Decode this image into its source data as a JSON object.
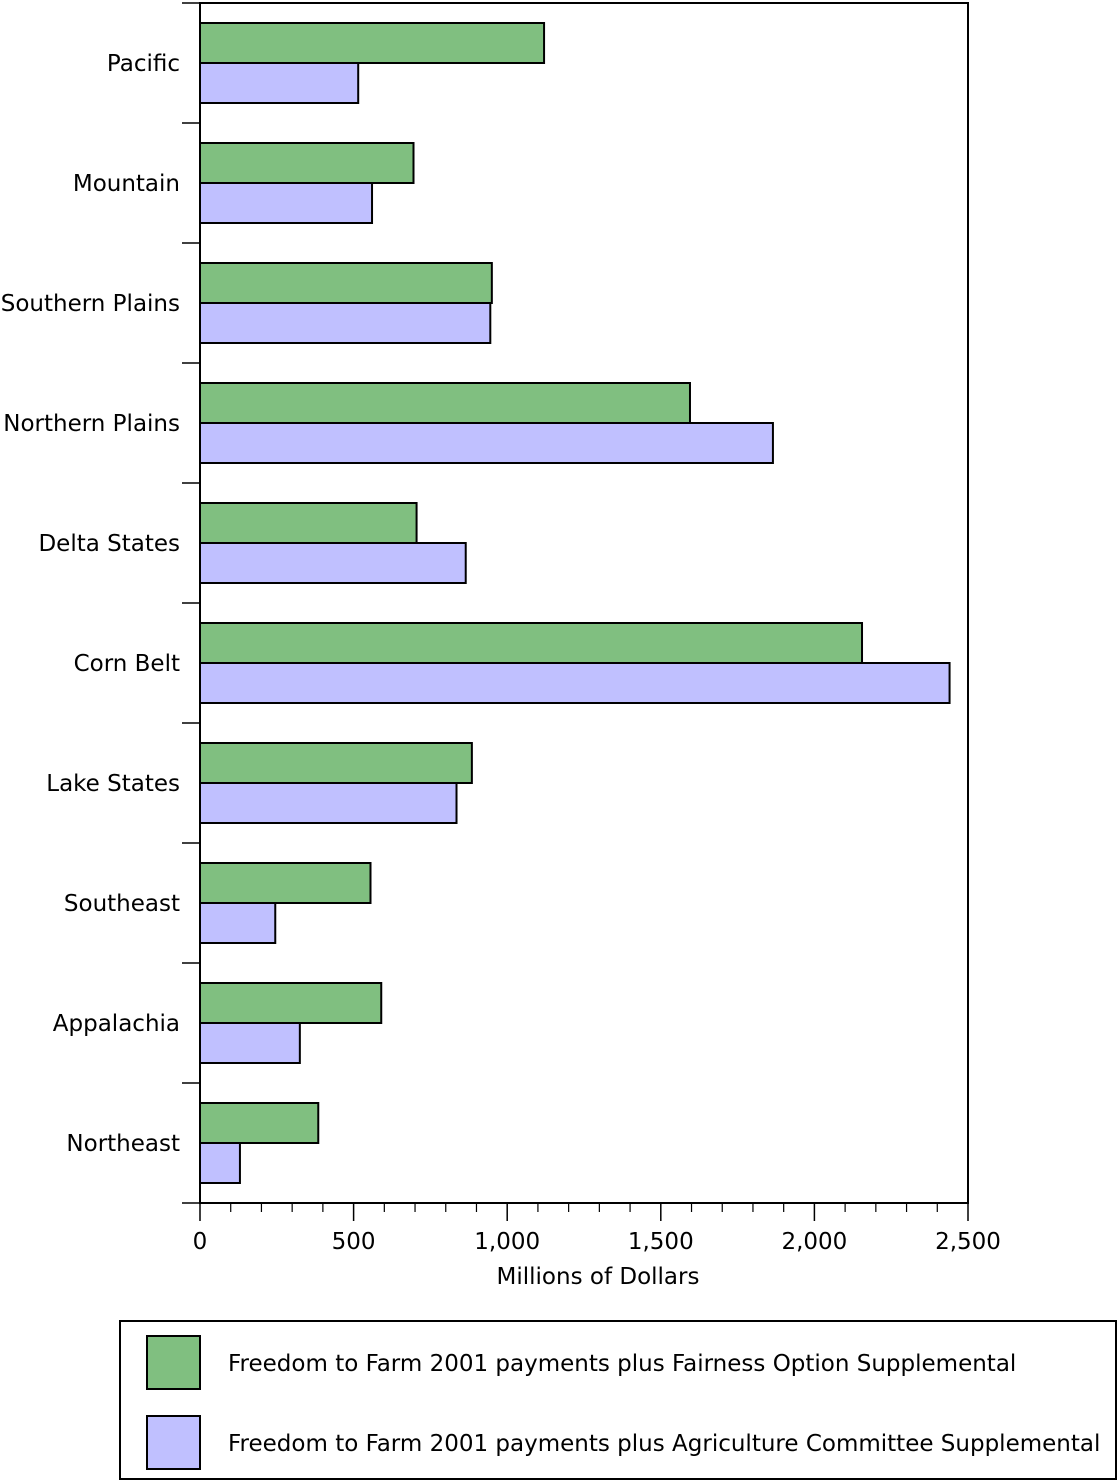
{
  "chart_data": {
    "type": "bar",
    "orientation": "horizontal",
    "title": "",
    "xlabel": "Millions of Dollars",
    "ylabel": "",
    "xlim": [
      0,
      2500
    ],
    "x_ticks": [
      0,
      500,
      1000,
      1500,
      2000,
      2500
    ],
    "x_tick_labels": [
      "0",
      "500",
      "1,000",
      "1,500",
      "2,000",
      "2,500"
    ],
    "categories": [
      "Pacific",
      "Mountain",
      "Southern Plains",
      "Northern Plains",
      "Delta States",
      "Corn Belt",
      "Lake States",
      "Southeast",
      "Appalachia",
      "Northeast"
    ],
    "series": [
      {
        "name": "Freedom to Farm 2001 payments plus Fairness Option Supplemental",
        "color": "#80bf80",
        "values": [
          1120,
          695,
          950,
          1595,
          705,
          2155,
          885,
          555,
          590,
          385
        ]
      },
      {
        "name": "Freedom to Farm 2001 payments plus Agriculture Committee Supplemental",
        "color": "#c0c0ff",
        "values": [
          515,
          560,
          945,
          1865,
          865,
          2440,
          835,
          245,
          325,
          130
        ]
      }
    ],
    "grid": false,
    "legend_position": "bottom"
  }
}
